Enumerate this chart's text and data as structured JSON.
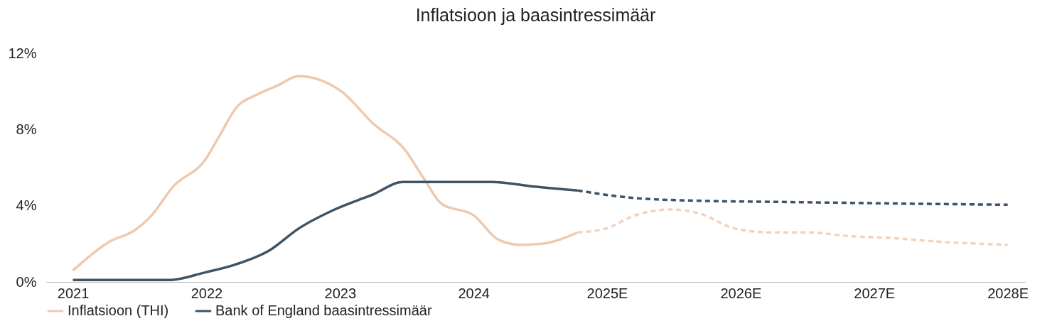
{
  "chart_data": {
    "type": "line",
    "title": "Inflatsioon ja baasintressimäär",
    "xlim": [
      2020.8,
      2028.13
    ],
    "xticks": [
      2021,
      2022,
      2023,
      2024,
      {
        "value": 2025,
        "label": "2025E"
      },
      {
        "value": 2026,
        "label": "2026E"
      },
      {
        "value": 2027,
        "label": "2027E"
      },
      {
        "value": 2028,
        "label": "2028E"
      }
    ],
    "ylim": [
      0,
      12
    ],
    "yticks": [
      {
        "value": 0,
        "label": "0%"
      },
      {
        "value": 4,
        "label": "4%"
      },
      {
        "value": 8,
        "label": "8%"
      },
      {
        "value": 12,
        "label": "12%"
      }
    ],
    "grid": false,
    "legend": "bottom",
    "marker": "none",
    "series": [
      {
        "name": "Inflatsioon (THI)",
        "color": "#efc9ae",
        "line_style": "solid",
        "x": [
          2021.0,
          2021.27,
          2021.46,
          2021.59,
          2021.75,
          2021.99,
          2022.1,
          2022.23,
          2022.37,
          2022.53,
          2022.69,
          2022.85,
          2023.01,
          2023.25,
          2023.49,
          2023.63,
          2023.76,
          2024.0,
          2024.19,
          2024.35,
          2024.51,
          2024.78
        ],
        "values": [
          0.6,
          2.1,
          2.7,
          3.5,
          5.0,
          6.4,
          7.7,
          9.2,
          9.8,
          10.3,
          10.8,
          10.6,
          10.0,
          8.3,
          6.9,
          5.4,
          4.1,
          3.5,
          2.2,
          1.95,
          2.0,
          2.6
        ]
      },
      {
        "color": "#f2d3bd",
        "line_style": "dashed",
        "x": [
          2024.78,
          2024.99,
          2025.21,
          2025.48,
          2025.69,
          2025.96,
          2026.23,
          2026.5,
          2026.82,
          2027.14,
          2027.51,
          2028.0
        ],
        "values": [
          2.6,
          2.8,
          3.5,
          3.8,
          3.6,
          2.8,
          2.6,
          2.6,
          2.4,
          2.3,
          2.1,
          1.95
        ]
      },
      {
        "name": "Bank of England baasintressimäär",
        "color": "#3d5468",
        "line_style": "solid",
        "x": [
          2021.0,
          2021.72,
          2021.99,
          2022.21,
          2022.47,
          2022.69,
          2022.96,
          2023.25,
          2023.47,
          2024.14,
          2024.46,
          2024.78
        ],
        "values": [
          0.1,
          0.1,
          0.5,
          0.9,
          1.65,
          2.8,
          3.8,
          4.6,
          5.25,
          5.25,
          5.0,
          4.8
        ]
      },
      {
        "color": "#3d5468",
        "line_style": "dashed",
        "x": [
          2024.78,
          2025.21,
          2025.75,
          2026.28,
          2027.35,
          2028.0
        ],
        "values": [
          4.8,
          4.4,
          4.25,
          4.2,
          4.1,
          4.05
        ]
      }
    ]
  }
}
